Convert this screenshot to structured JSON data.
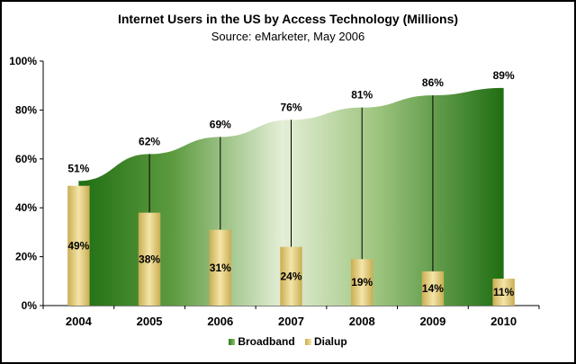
{
  "chart_data": {
    "type": "area",
    "title": "Internet Users in the US by Access Technology (Millions)",
    "subtitle": "Source:  eMarketer, May 2006",
    "categories": [
      "2004",
      "2005",
      "2006",
      "2007",
      "2008",
      "2009",
      "2010"
    ],
    "ylim": [
      0,
      100
    ],
    "yticks": [
      "0%",
      "20%",
      "40%",
      "60%",
      "80%",
      "100%"
    ],
    "series": [
      {
        "name": "Broadband",
        "type": "area",
        "values": [
          51,
          62,
          69,
          76,
          81,
          86,
          89
        ],
        "labels": [
          "51%",
          "62%",
          "69%",
          "76%",
          "81%",
          "86%",
          "89%"
        ]
      },
      {
        "name": "Dialup",
        "type": "bar",
        "values": [
          49,
          38,
          31,
          24,
          19,
          14,
          11
        ],
        "labels": [
          "49%",
          "38%",
          "31%",
          "24%",
          "19%",
          "14%",
          "11%"
        ]
      }
    ],
    "legend": "bottom",
    "grid": false
  },
  "colors": {
    "broadband_dark": "#1f6e12",
    "broadband_light": "#e4efd6",
    "dialup_dark": "#c9ad52",
    "dialup_light": "#f4e5a8"
  }
}
